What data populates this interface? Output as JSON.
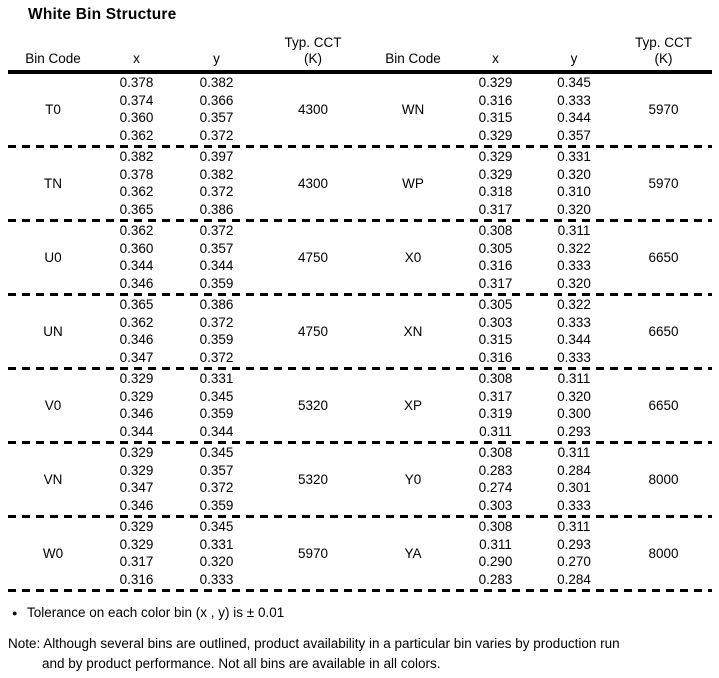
{
  "title": "White Bin Structure",
  "table": {
    "columns": [
      {
        "label": "Bin Code",
        "sub": ""
      },
      {
        "label": "x",
        "sub": ""
      },
      {
        "label": "y",
        "sub": ""
      },
      {
        "label": "Typ. CCT",
        "sub": "(K)"
      },
      {
        "label": "Bin Code",
        "sub": ""
      },
      {
        "label": "x",
        "sub": ""
      },
      {
        "label": "y",
        "sub": ""
      },
      {
        "label": "Typ. CCT",
        "sub": "(K)"
      }
    ],
    "rows": [
      {
        "left": {
          "bin": "T0",
          "x": [
            "0.378",
            "0.374",
            "0.360",
            "0.362"
          ],
          "y": [
            "0.382",
            "0.366",
            "0.357",
            "0.372"
          ],
          "cct": "4300"
        },
        "right": {
          "bin": "WN",
          "x": [
            "0.329",
            "0.316",
            "0.315",
            "0.329"
          ],
          "y": [
            "0.345",
            "0.333",
            "0.344",
            "0.357"
          ],
          "cct": "5970"
        }
      },
      {
        "left": {
          "bin": "TN",
          "x": [
            "0.382",
            "0.378",
            "0.362",
            "0.365"
          ],
          "y": [
            "0.397",
            "0.382",
            "0.372",
            "0.386"
          ],
          "cct": "4300"
        },
        "right": {
          "bin": "WP",
          "x": [
            "0.329",
            "0.329",
            "0.318",
            "0.317"
          ],
          "y": [
            "0.331",
            "0.320",
            "0.310",
            "0.320"
          ],
          "cct": "5970"
        }
      },
      {
        "left": {
          "bin": "U0",
          "x": [
            "0.362",
            "0.360",
            "0.344",
            "0.346"
          ],
          "y": [
            "0.372",
            "0.357",
            "0.344",
            "0.359"
          ],
          "cct": "4750"
        },
        "right": {
          "bin": "X0",
          "x": [
            "0.308",
            "0.305",
            "0.316",
            "0.317"
          ],
          "y": [
            "0.311",
            "0.322",
            "0.333",
            "0.320"
          ],
          "cct": "6650"
        }
      },
      {
        "left": {
          "bin": "UN",
          "x": [
            "0.365",
            "0.362",
            "0.346",
            "0.347"
          ],
          "y": [
            "0.386",
            "0.372",
            "0.359",
            "0.372"
          ],
          "cct": "4750"
        },
        "right": {
          "bin": "XN",
          "x": [
            "0.305",
            "0.303",
            "0.315",
            "0.316"
          ],
          "y": [
            "0.322",
            "0.333",
            "0.344",
            "0.333"
          ],
          "cct": "6650"
        }
      },
      {
        "left": {
          "bin": "V0",
          "x": [
            "0.329",
            "0.329",
            "0.346",
            "0.344"
          ],
          "y": [
            "0.331",
            "0.345",
            "0.359",
            "0.344"
          ],
          "cct": "5320"
        },
        "right": {
          "bin": "XP",
          "x": [
            "0.308",
            "0.317",
            "0.319",
            "0.311"
          ],
          "y": [
            "0.311",
            "0.320",
            "0.300",
            "0.293"
          ],
          "cct": "6650"
        }
      },
      {
        "left": {
          "bin": "VN",
          "x": [
            "0.329",
            "0.329",
            "0.347",
            "0.346"
          ],
          "y": [
            "0.345",
            "0.357",
            "0.372",
            "0.359"
          ],
          "cct": "5320"
        },
        "right": {
          "bin": "Y0",
          "x": [
            "0.308",
            "0.283",
            "0.274",
            "0.303"
          ],
          "y": [
            "0.311",
            "0.284",
            "0.301",
            "0.333"
          ],
          "cct": "8000"
        }
      },
      {
        "left": {
          "bin": "W0",
          "x": [
            "0.329",
            "0.329",
            "0.317",
            "0.316"
          ],
          "y": [
            "0.345",
            "0.331",
            "0.320",
            "0.333"
          ],
          "cct": "5970"
        },
        "right": {
          "bin": "YA",
          "x": [
            "0.308",
            "0.311",
            "0.290",
            "0.283"
          ],
          "y": [
            "0.311",
            "0.293",
            "0.270",
            "0.284"
          ],
          "cct": "8000"
        }
      }
    ]
  },
  "footnotes": {
    "bullet": "●",
    "tolerance": "Tolerance on each color bin (x , y) is ± 0.01",
    "note_line1": "Note: Although several bins are outlined, product availability in a particular bin varies by production run",
    "note_line2": "and by product performance. Not all bins are available in all colors."
  }
}
